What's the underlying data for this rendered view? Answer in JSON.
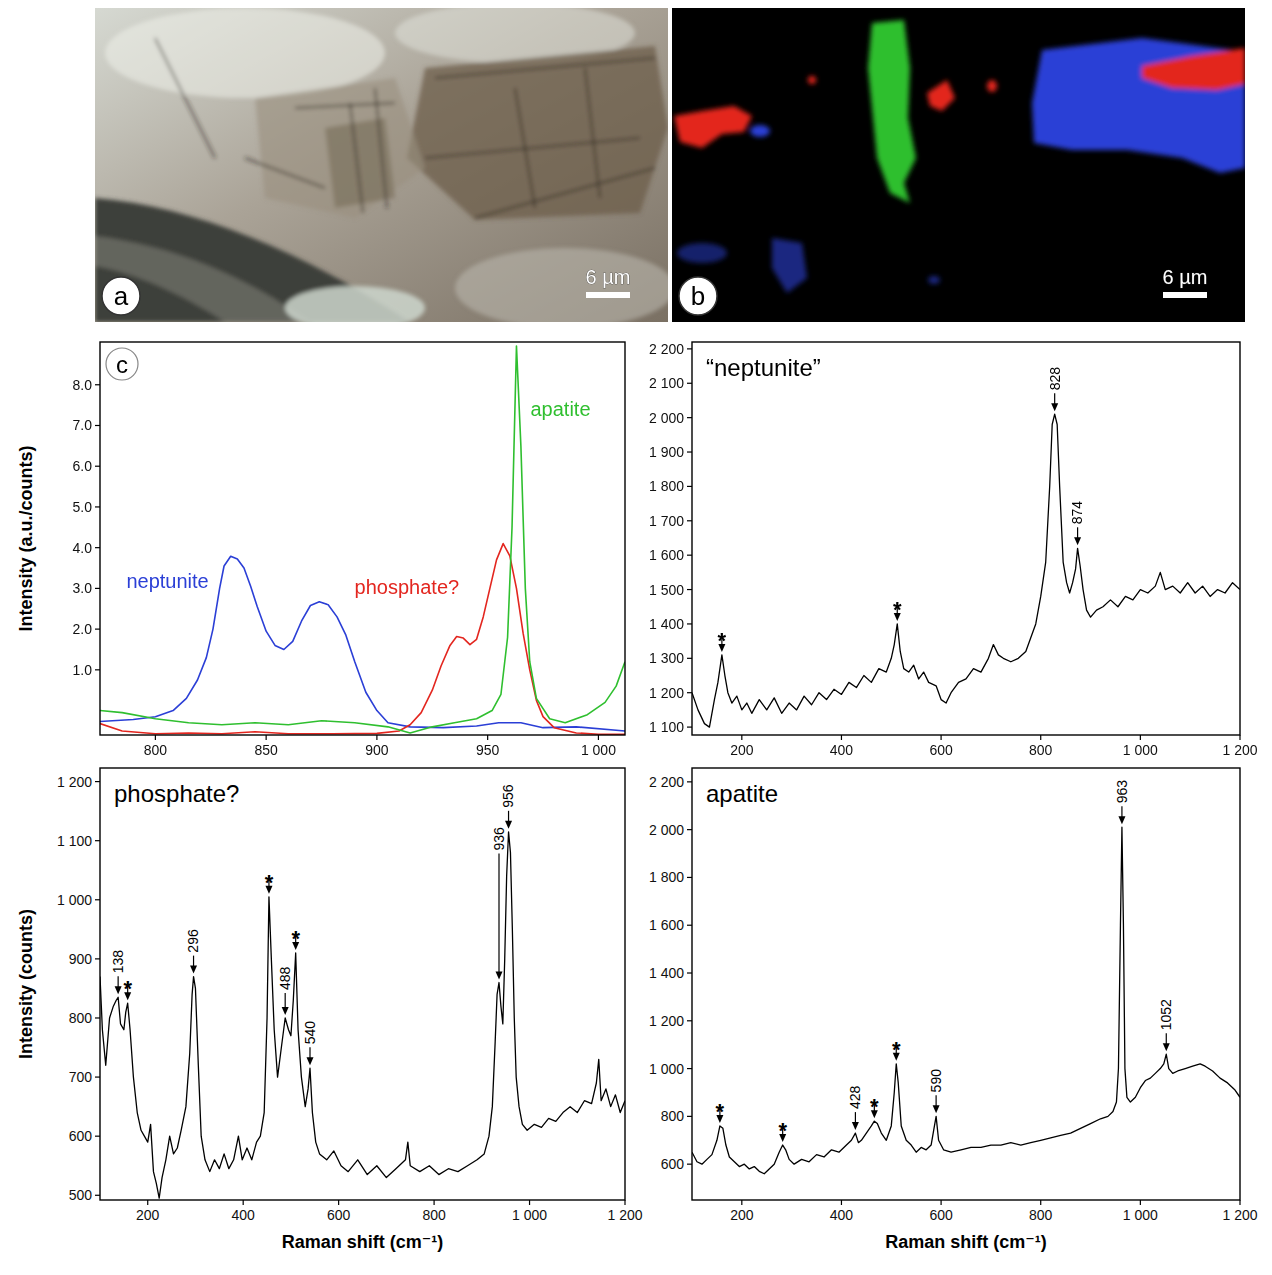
{
  "images": [
    {
      "letter": "a",
      "scale_bar": "6 µm"
    },
    {
      "letter": "b",
      "scale_bar": "6 µm"
    }
  ],
  "chart_data": [
    {
      "type": "line",
      "panel_label": "c",
      "ylabel": "Intensity (a.u./counts)",
      "xlim": [
        775,
        1012
      ],
      "ylim": [
        -0.6,
        9.05
      ],
      "xticks": [
        800,
        850,
        900,
        950,
        {
          "value": 1000,
          "label": "1 000"
        }
      ],
      "yticks": [
        {
          "value": 1,
          "label": "1.0"
        },
        {
          "value": 2,
          "label": "2.0"
        },
        {
          "value": 3,
          "label": "3.0"
        },
        {
          "value": 4,
          "label": "4.0"
        },
        {
          "value": 5,
          "label": "5.0"
        },
        {
          "value": 6,
          "label": "6.0"
        },
        {
          "value": 7,
          "label": "7.0"
        },
        {
          "value": 8,
          "label": "8.0"
        }
      ],
      "series": [
        {
          "name": "neptunite",
          "color": "#2b3fd6",
          "x": [
            775,
            790,
            800,
            808,
            814,
            819,
            823,
            826,
            829,
            831,
            834,
            837,
            840,
            843,
            846,
            850,
            854,
            858,
            862,
            866,
            870,
            874,
            878,
            882,
            886,
            890,
            895,
            900,
            905,
            915,
            930,
            945,
            955,
            965,
            975,
            990,
            1012
          ],
          "values": [
            -0.27,
            -0.22,
            -0.15,
            0.0,
            0.3,
            0.75,
            1.3,
            2.0,
            3.0,
            3.55,
            3.79,
            3.72,
            3.5,
            3.05,
            2.55,
            1.95,
            1.6,
            1.5,
            1.7,
            2.2,
            2.58,
            2.67,
            2.6,
            2.3,
            1.85,
            1.2,
            0.45,
            0.0,
            -0.3,
            -0.4,
            -0.42,
            -0.38,
            -0.3,
            -0.3,
            -0.42,
            -0.4,
            -0.5
          ]
        },
        {
          "name": "phosphate?",
          "color": "#e3261f",
          "x": [
            775,
            785,
            800,
            815,
            830,
            845,
            860,
            880,
            900,
            910,
            915,
            920,
            925,
            929,
            933,
            936,
            939,
            942,
            945,
            948,
            951,
            954,
            957,
            960,
            963,
            966,
            969,
            972,
            975,
            980,
            990,
            1000,
            1012
          ],
          "values": [
            -0.32,
            -0.5,
            -0.57,
            -0.55,
            -0.57,
            -0.52,
            -0.57,
            -0.57,
            -0.56,
            -0.5,
            -0.35,
            -0.05,
            0.5,
            1.1,
            1.6,
            1.82,
            1.78,
            1.62,
            1.75,
            2.3,
            3.0,
            3.7,
            4.1,
            3.8,
            3.0,
            1.9,
            1.0,
            0.25,
            -0.15,
            -0.42,
            -0.55,
            -0.58,
            -0.58
          ]
        },
        {
          "name": "apatite",
          "color": "#2fbf2f",
          "x": [
            775,
            785,
            800,
            815,
            830,
            845,
            860,
            875,
            890,
            905,
            915,
            925,
            935,
            945,
            952,
            956,
            959,
            961,
            963,
            965,
            967,
            969,
            972,
            978,
            985,
            995,
            1003,
            1008,
            1012
          ],
          "values": [
            0.0,
            -0.05,
            -0.2,
            -0.3,
            -0.35,
            -0.3,
            -0.35,
            -0.25,
            -0.3,
            -0.4,
            -0.55,
            -0.4,
            -0.3,
            -0.2,
            0.0,
            0.4,
            1.8,
            4.5,
            8.95,
            6.5,
            3.0,
            1.2,
            0.3,
            -0.2,
            -0.3,
            -0.1,
            0.2,
            0.6,
            1.2
          ]
        }
      ]
    },
    {
      "type": "line",
      "title": "“neptunite”",
      "color": "#000000",
      "xlim": [
        100,
        1200
      ],
      "ylim": [
        1077,
        2220
      ],
      "xticks": [
        200,
        400,
        600,
        800,
        {
          "value": 1000,
          "label": "1 000"
        },
        {
          "value": 1200,
          "label": "1 200"
        }
      ],
      "yticks": [
        {
          "value": 1100,
          "label": "1 100"
        },
        {
          "value": 1200,
          "label": "1 200"
        },
        {
          "value": 1300,
          "label": "1 300"
        },
        {
          "value": 1400,
          "label": "1 400"
        },
        {
          "value": 1500,
          "label": "1 500"
        },
        {
          "value": 1600,
          "label": "1 600"
        },
        {
          "value": 1700,
          "label": "1 700"
        },
        {
          "value": 1800,
          "label": "1 800"
        },
        {
          "value": 1900,
          "label": "1 900"
        },
        {
          "value": 2000,
          "label": "2 000"
        },
        {
          "value": 2100,
          "label": "2 100"
        },
        {
          "value": 2200,
          "label": "2 200"
        }
      ],
      "x": [
        100,
        112,
        125,
        135,
        145,
        152,
        160,
        166,
        172,
        180,
        190,
        200,
        210,
        220,
        235,
        250,
        265,
        280,
        295,
        310,
        325,
        340,
        355,
        370,
        385,
        400,
        415,
        430,
        445,
        460,
        475,
        490,
        500,
        506,
        512,
        518,
        525,
        535,
        545,
        555,
        565,
        575,
        590,
        600,
        610,
        620,
        635,
        650,
        665,
        680,
        695,
        705,
        715,
        725,
        740,
        755,
        770,
        780,
        790,
        800,
        810,
        818,
        823,
        828,
        833,
        838,
        845,
        852,
        858,
        864,
        870,
        874,
        879,
        885,
        892,
        900,
        912,
        925,
        940,
        955,
        970,
        985,
        1000,
        1015,
        1030,
        1040,
        1050,
        1065,
        1080,
        1095,
        1110,
        1125,
        1140,
        1155,
        1170,
        1185,
        1200
      ],
      "values": [
        1200,
        1150,
        1110,
        1100,
        1180,
        1230,
        1310,
        1250,
        1200,
        1170,
        1190,
        1150,
        1170,
        1140,
        1180,
        1150,
        1185,
        1140,
        1170,
        1150,
        1190,
        1165,
        1200,
        1180,
        1210,
        1195,
        1230,
        1215,
        1250,
        1230,
        1270,
        1260,
        1300,
        1340,
        1400,
        1320,
        1270,
        1260,
        1280,
        1240,
        1260,
        1230,
        1220,
        1180,
        1170,
        1200,
        1230,
        1240,
        1270,
        1260,
        1300,
        1340,
        1310,
        1300,
        1290,
        1300,
        1320,
        1360,
        1400,
        1480,
        1580,
        1800,
        1980,
        2010,
        1980,
        1800,
        1580,
        1520,
        1490,
        1520,
        1560,
        1620,
        1570,
        1500,
        1440,
        1420,
        1440,
        1450,
        1470,
        1450,
        1480,
        1470,
        1500,
        1490,
        1510,
        1550,
        1500,
        1510,
        1490,
        1520,
        1490,
        1510,
        1480,
        1500,
        1490,
        1520,
        1500
      ],
      "annotations": [
        {
          "x": 160,
          "y": 1310,
          "label": "*"
        },
        {
          "x": 512,
          "y": 1400,
          "label": "*"
        },
        {
          "x": 828,
          "y": 2010,
          "label": "828"
        },
        {
          "x": 874,
          "y": 1620,
          "label": "874"
        }
      ]
    },
    {
      "type": "line",
      "title": "phosphate?",
      "color": "#000000",
      "ylabel": "Intensity (counts)",
      "xlabel": "Raman shift (cm⁻¹)",
      "xlim": [
        100,
        1200
      ],
      "ylim": [
        492,
        1223
      ],
      "xticks": [
        200,
        400,
        600,
        800,
        {
          "value": 1000,
          "label": "1 000"
        },
        {
          "value": 1200,
          "label": "1 200"
        }
      ],
      "yticks": [
        500,
        600,
        700,
        800,
        900,
        {
          "value": 1000,
          "label": "1 000"
        },
        {
          "value": 1100,
          "label": "1 100"
        },
        {
          "value": 1200,
          "label": "1 200"
        }
      ],
      "x": [
        100,
        105,
        112,
        120,
        128,
        134,
        138,
        143,
        150,
        154,
        158,
        163,
        170,
        178,
        186,
        193,
        200,
        206,
        212,
        218,
        224,
        230,
        238,
        246,
        254,
        262,
        270,
        280,
        288,
        293,
        296,
        300,
        306,
        312,
        320,
        330,
        340,
        350,
        360,
        370,
        380,
        390,
        398,
        408,
        418,
        428,
        436,
        444,
        450,
        454,
        459,
        465,
        472,
        480,
        488,
        495,
        500,
        505,
        510,
        515,
        522,
        530,
        536,
        540,
        545,
        552,
        560,
        575,
        590,
        605,
        620,
        640,
        660,
        680,
        700,
        720,
        740,
        745,
        750,
        770,
        790,
        810,
        830,
        850,
        870,
        890,
        905,
        915,
        922,
        928,
        932,
        936,
        940,
        944,
        948,
        952,
        956,
        960,
        964,
        968,
        972,
        978,
        985,
        995,
        1010,
        1025,
        1040,
        1055,
        1070,
        1085,
        1100,
        1115,
        1130,
        1140,
        1145,
        1150,
        1160,
        1170,
        1180,
        1190,
        1200
      ],
      "values": [
        870,
        780,
        720,
        800,
        820,
        830,
        835,
        790,
        780,
        810,
        825,
        780,
        700,
        640,
        610,
        600,
        590,
        620,
        540,
        520,
        495,
        530,
        560,
        600,
        570,
        580,
        610,
        650,
        740,
        840,
        870,
        850,
        720,
        600,
        560,
        540,
        560,
        545,
        570,
        545,
        560,
        600,
        560,
        580,
        560,
        590,
        600,
        640,
        800,
        1005,
        900,
        780,
        700,
        750,
        800,
        780,
        770,
        830,
        910,
        780,
        700,
        650,
        680,
        715,
        640,
        590,
        570,
        560,
        575,
        550,
        540,
        560,
        535,
        550,
        530,
        545,
        560,
        590,
        550,
        540,
        550,
        535,
        545,
        540,
        550,
        560,
        570,
        600,
        650,
        760,
        840,
        860,
        820,
        790,
        900,
        1040,
        1115,
        1080,
        950,
        800,
        700,
        650,
        620,
        610,
        620,
        615,
        630,
        625,
        640,
        650,
        640,
        660,
        655,
        690,
        730,
        660,
        680,
        650,
        670,
        640,
        660
      ],
      "annotations": [
        {
          "x": 138,
          "y": 835,
          "label": "138"
        },
        {
          "x": 158,
          "y": 825,
          "label": "*"
        },
        {
          "x": 296,
          "y": 870,
          "label": "296"
        },
        {
          "x": 454,
          "y": 1005,
          "label": "*"
        },
        {
          "x": 488,
          "y": 800,
          "label": "488"
        },
        {
          "x": 510,
          "y": 910,
          "label": "*"
        },
        {
          "x": 540,
          "y": 715,
          "label": "540"
        },
        {
          "x": 936,
          "y": 860,
          "label": "936"
        },
        {
          "x": 956,
          "y": 1115,
          "label": "956"
        }
      ]
    },
    {
      "type": "line",
      "title": "apatite",
      "color": "#000000",
      "xlabel": "Raman shift (cm⁻¹)",
      "xlim": [
        100,
        1200
      ],
      "ylim": [
        450,
        2258
      ],
      "xticks": [
        200,
        400,
        600,
        800,
        {
          "value": 1000,
          "label": "1 000"
        },
        {
          "value": 1200,
          "label": "1 200"
        }
      ],
      "yticks": [
        600,
        800,
        {
          "value": 1000,
          "label": "1 000"
        },
        {
          "value": 1200,
          "label": "1 200"
        },
        {
          "value": 1400,
          "label": "1 400"
        },
        {
          "value": 1600,
          "label": "1 600"
        },
        {
          "value": 1800,
          "label": "1 800"
        },
        {
          "value": 2000,
          "label": "2 000"
        },
        {
          "value": 2200,
          "label": "2 200"
        }
      ],
      "x": [
        100,
        110,
        120,
        130,
        140,
        150,
        156,
        162,
        168,
        175,
        185,
        195,
        205,
        215,
        225,
        235,
        245,
        255,
        265,
        275,
        282,
        288,
        295,
        305,
        320,
        335,
        350,
        365,
        380,
        395,
        410,
        420,
        428,
        434,
        440,
        450,
        460,
        466,
        472,
        480,
        490,
        500,
        506,
        510,
        514,
        520,
        530,
        540,
        550,
        560,
        570,
        580,
        585,
        590,
        595,
        605,
        620,
        640,
        660,
        680,
        700,
        720,
        740,
        760,
        780,
        800,
        820,
        840,
        860,
        880,
        900,
        920,
        935,
        945,
        952,
        956,
        960,
        963,
        966,
        969,
        973,
        980,
        990,
        1000,
        1010,
        1020,
        1030,
        1040,
        1047,
        1052,
        1057,
        1065,
        1075,
        1090,
        1105,
        1120,
        1130,
        1145,
        1160,
        1175,
        1190,
        1200
      ],
      "values": [
        650,
        610,
        600,
        620,
        640,
        700,
        760,
        750,
        680,
        630,
        610,
        590,
        600,
        580,
        590,
        570,
        560,
        580,
        600,
        650,
        680,
        660,
        620,
        600,
        620,
        610,
        640,
        630,
        660,
        650,
        680,
        700,
        730,
        690,
        700,
        730,
        760,
        780,
        770,
        730,
        700,
        760,
        900,
        1020,
        940,
        760,
        700,
        680,
        650,
        670,
        660,
        680,
        740,
        800,
        700,
        660,
        650,
        660,
        670,
        670,
        680,
        680,
        690,
        680,
        690,
        700,
        710,
        720,
        730,
        750,
        770,
        790,
        800,
        820,
        860,
        1000,
        1600,
        2010,
        1600,
        1000,
        880,
        860,
        880,
        920,
        950,
        960,
        980,
        1000,
        1020,
        1060,
        1000,
        980,
        990,
        1000,
        1010,
        1020,
        1010,
        990,
        960,
        940,
        910,
        880
      ],
      "annotations": [
        {
          "x": 156,
          "y": 760,
          "label": "*"
        },
        {
          "x": 282,
          "y": 680,
          "label": "*"
        },
        {
          "x": 428,
          "y": 730,
          "label": "428"
        },
        {
          "x": 466,
          "y": 780,
          "label": "*"
        },
        {
          "x": 510,
          "y": 1020,
          "label": "*"
        },
        {
          "x": 590,
          "y": 800,
          "label": "590"
        },
        {
          "x": 963,
          "y": 2010,
          "label": "963"
        },
        {
          "x": 1052,
          "y": 1060,
          "label": "1052"
        }
      ]
    }
  ]
}
